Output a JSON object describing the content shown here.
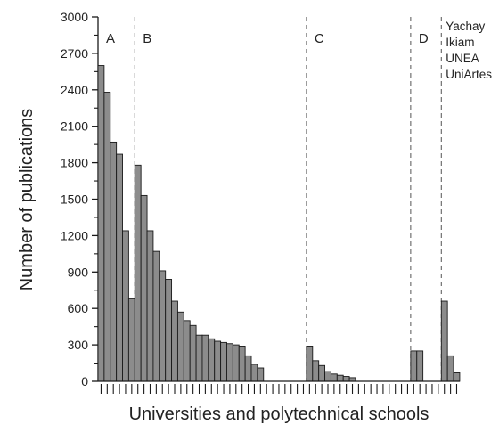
{
  "chart_data": {
    "type": "bar",
    "xlabel": "Universities and polytechnical schools",
    "ylabel": "Number of publications",
    "ylim": [
      0,
      3000
    ],
    "yticks": [
      0,
      300,
      600,
      900,
      1200,
      1500,
      1800,
      2100,
      2400,
      2700,
      3000
    ],
    "x_category_count": 59,
    "values": [
      2600,
      2380,
      1970,
      1870,
      1240,
      680,
      1780,
      1530,
      1240,
      1070,
      910,
      840,
      660,
      570,
      500,
      460,
      380,
      380,
      350,
      330,
      320,
      310,
      300,
      290,
      210,
      140,
      110,
      0,
      0,
      0,
      0,
      0,
      0,
      0,
      290,
      170,
      130,
      80,
      60,
      50,
      40,
      30,
      0,
      0,
      0,
      0,
      0,
      0,
      0,
      0,
      0,
      250,
      250,
      0,
      0,
      0,
      660,
      210,
      70
    ],
    "regions": [
      {
        "label": "A"
      },
      {
        "label": "B"
      },
      {
        "label": "C"
      },
      {
        "label": "D"
      },
      {
        "names": [
          "Yachay",
          "Ikiam",
          "UNEA",
          "UniArtes"
        ]
      }
    ],
    "region_boundaries_after_index": [
      5,
      33,
      50,
      55
    ],
    "colors": {
      "bar_fill": "#8c8c8c",
      "bar_stroke": "#1a1a1a",
      "axis": "#1a1a1a",
      "divider": "#555555"
    }
  }
}
